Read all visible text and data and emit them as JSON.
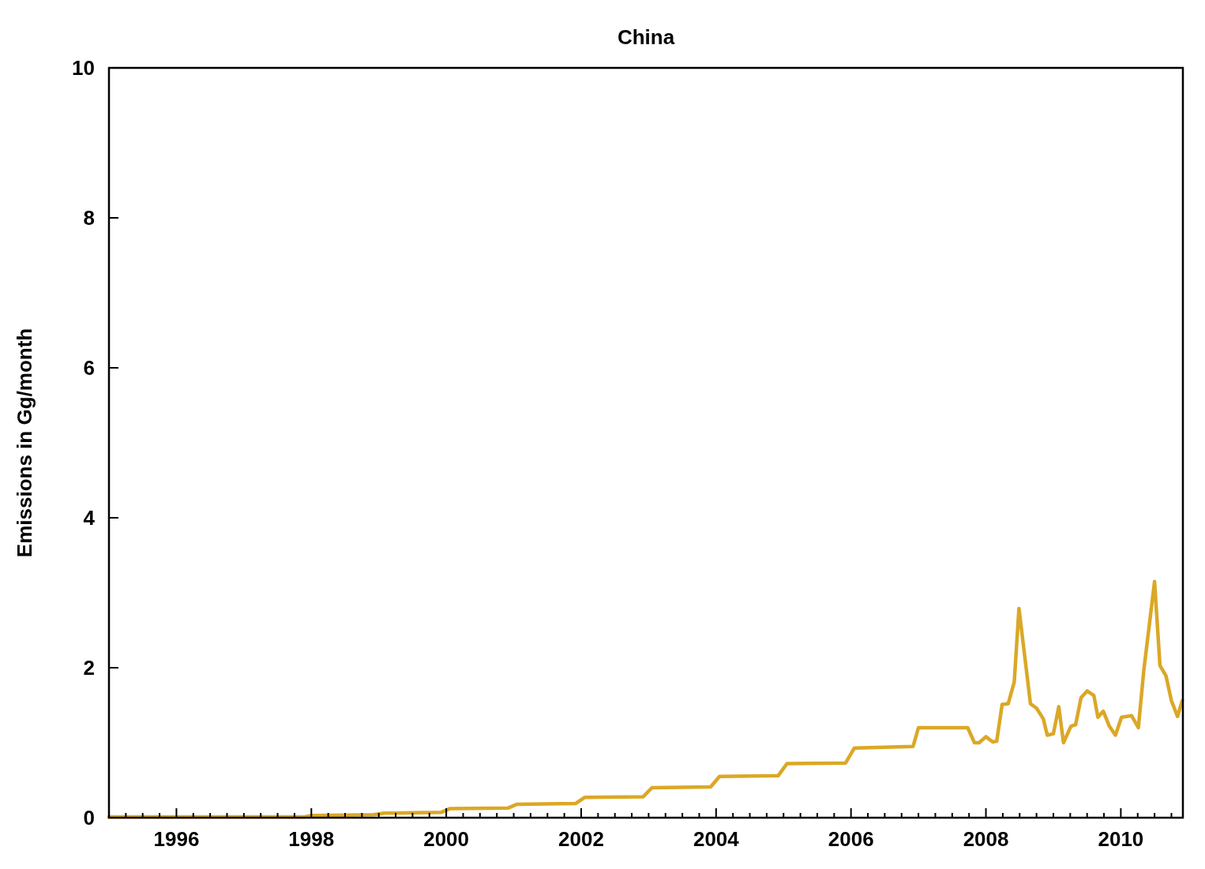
{
  "chart_data": {
    "type": "line",
    "title": "China",
    "ylabel": "Emissions in Gg/month",
    "xlim": [
      1995,
      2010.92
    ],
    "ylim": [
      0,
      10
    ],
    "xticks": [
      {
        "value": 1995.25,
        "label": null
      },
      {
        "value": 1995.5,
        "label": null
      },
      {
        "value": 1995.75,
        "label": null
      },
      1996,
      {
        "value": 1996.25,
        "label": null
      },
      {
        "value": 1996.5,
        "label": null
      },
      {
        "value": 1996.75,
        "label": null
      },
      {
        "value": 1997,
        "label": null
      },
      {
        "value": 1997.25,
        "label": null
      },
      {
        "value": 1997.5,
        "label": null
      },
      {
        "value": 1997.75,
        "label": null
      },
      1998,
      {
        "value": 1998.25,
        "label": null
      },
      {
        "value": 1998.5,
        "label": null
      },
      {
        "value": 1998.75,
        "label": null
      },
      {
        "value": 1999,
        "label": null
      },
      {
        "value": 1999.25,
        "label": null
      },
      {
        "value": 1999.5,
        "label": null
      },
      {
        "value": 1999.75,
        "label": null
      },
      2000,
      {
        "value": 2000.25,
        "label": null
      },
      {
        "value": 2000.5,
        "label": null
      },
      {
        "value": 2000.75,
        "label": null
      },
      {
        "value": 2001,
        "label": null
      },
      {
        "value": 2001.25,
        "label": null
      },
      {
        "value": 2001.5,
        "label": null
      },
      {
        "value": 2001.75,
        "label": null
      },
      2002,
      {
        "value": 2002.25,
        "label": null
      },
      {
        "value": 2002.5,
        "label": null
      },
      {
        "value": 2002.75,
        "label": null
      },
      {
        "value": 2003,
        "label": null
      },
      {
        "value": 2003.25,
        "label": null
      },
      {
        "value": 2003.5,
        "label": null
      },
      {
        "value": 2003.75,
        "label": null
      },
      2004,
      {
        "value": 2004.25,
        "label": null
      },
      {
        "value": 2004.5,
        "label": null
      },
      {
        "value": 2004.75,
        "label": null
      },
      {
        "value": 2005,
        "label": null
      },
      {
        "value": 2005.25,
        "label": null
      },
      {
        "value": 2005.5,
        "label": null
      },
      {
        "value": 2005.75,
        "label": null
      },
      2006,
      {
        "value": 2006.25,
        "label": null
      },
      {
        "value": 2006.5,
        "label": null
      },
      {
        "value": 2006.75,
        "label": null
      },
      {
        "value": 2007,
        "label": null
      },
      {
        "value": 2007.25,
        "label": null
      },
      {
        "value": 2007.5,
        "label": null
      },
      {
        "value": 2007.75,
        "label": null
      },
      2008,
      {
        "value": 2008.25,
        "label": null
      },
      {
        "value": 2008.5,
        "label": null
      },
      {
        "value": 2008.75,
        "label": null
      },
      {
        "value": 2009,
        "label": null
      },
      {
        "value": 2009.25,
        "label": null
      },
      {
        "value": 2009.5,
        "label": null
      },
      {
        "value": 2009.75,
        "label": null
      },
      2010,
      {
        "value": 2010.25,
        "label": null
      },
      {
        "value": 2010.5,
        "label": null
      },
      {
        "value": 2010.75,
        "label": null
      }
    ],
    "yticks": [
      0,
      2,
      4,
      6,
      8,
      10
    ],
    "grid": false,
    "line_style": "solid",
    "series": [
      {
        "color": "#dba826",
        "x": [
          1995,
          1997.9,
          1998,
          1998.92,
          1999.08,
          1999.92,
          2000.05,
          2000.92,
          2001.05,
          2001.92,
          2002.05,
          2002.92,
          2003.05,
          2003.92,
          2004.05,
          2004.92,
          2005.05,
          2005.92,
          2006.05,
          2006.92,
          2007.0,
          2007.73,
          2007.83,
          2007.9,
          2008.0,
          2008.1,
          2008.16,
          2008.24,
          2008.33,
          2008.42,
          2008.49,
          2008.66,
          2008.75,
          2008.85,
          2008.91,
          2009.0,
          2009.08,
          2009.15,
          2009.26,
          2009.33,
          2009.41,
          2009.5,
          2009.6,
          2009.66,
          2009.74,
          2009.83,
          2009.92,
          2010.01,
          2010.16,
          2010.26,
          2010.34,
          2010.5,
          2010.58,
          2010.67,
          2010.75,
          2010.84,
          2010.91
        ],
        "values": [
          0.01,
          0.01,
          0.03,
          0.04,
          0.06,
          0.07,
          0.12,
          0.13,
          0.18,
          0.19,
          0.27,
          0.28,
          0.4,
          0.41,
          0.55,
          0.56,
          0.72,
          0.73,
          0.93,
          0.95,
          1.2,
          1.2,
          1.0,
          1.0,
          1.08,
          1.01,
          1.02,
          1.51,
          1.52,
          1.81,
          2.79,
          1.52,
          1.46,
          1.32,
          1.1,
          1.12,
          1.48,
          1.0,
          1.22,
          1.24,
          1.6,
          1.69,
          1.63,
          1.34,
          1.42,
          1.22,
          1.1,
          1.34,
          1.36,
          1.2,
          1.96,
          3.15,
          2.03,
          1.89,
          1.56,
          1.35,
          1.56
        ]
      }
    ]
  }
}
